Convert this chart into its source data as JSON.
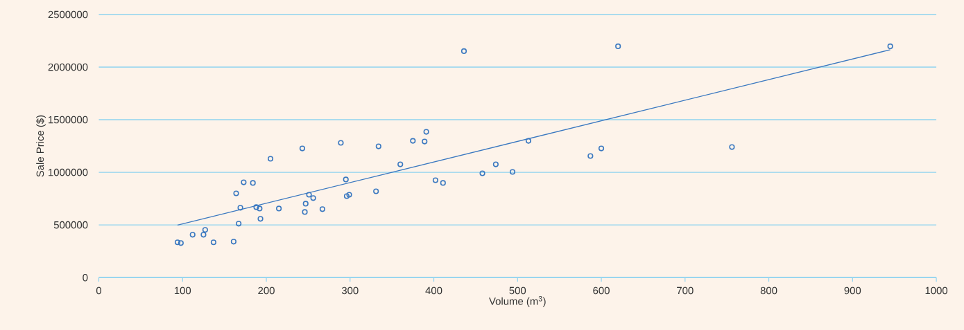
{
  "chart_data": {
    "type": "scatter",
    "xlabel": "Volume (m$^{3}$)",
    "ylabel": "Sale Price ($)",
    "xlim": [
      0,
      1000
    ],
    "ylim": [
      0,
      2500000
    ],
    "xticks": [
      0,
      100,
      200,
      300,
      400,
      500,
      600,
      700,
      800,
      900,
      1000
    ],
    "yticks": [
      0,
      500000,
      1000000,
      1500000,
      2000000,
      2500000
    ],
    "grid": "y",
    "marker": "circle",
    "series": [
      {
        "color": "#3a78c0",
        "x": [
          94,
          98,
          112,
          125,
          127,
          137,
          161,
          164,
          169,
          167,
          173,
          184,
          188,
          192,
          193,
          205,
          215,
          243,
          246,
          247,
          251,
          256,
          267,
          289,
          295,
          296,
          299,
          331,
          334,
          360,
          375,
          389,
          391,
          402,
          411,
          436,
          458,
          474,
          494,
          513,
          587,
          600,
          620,
          756,
          945
        ],
        "values": [
          335000,
          328000,
          407000,
          407000,
          453000,
          335000,
          341000,
          800000,
          663000,
          512000,
          905000,
          899000,
          669000,
          656000,
          558000,
          1129000,
          656000,
          1227000,
          623000,
          702000,
          787000,
          755000,
          650000,
          1280000,
          932000,
          774000,
          787000,
          820000,
          1247000,
          1076000,
          1299000,
          1293000,
          1385000,
          925000,
          899000,
          2152000,
          991000,
          1076000,
          1004000,
          1299000,
          1155000,
          1227000,
          2198000,
          1240000,
          2198000
        ]
      },
      {
        "type": "line",
        "color": "#3a78c0",
        "marker": "none",
        "x": [
          94,
          945
        ],
        "values": [
          499000,
          2165000
        ]
      }
    ]
  }
}
